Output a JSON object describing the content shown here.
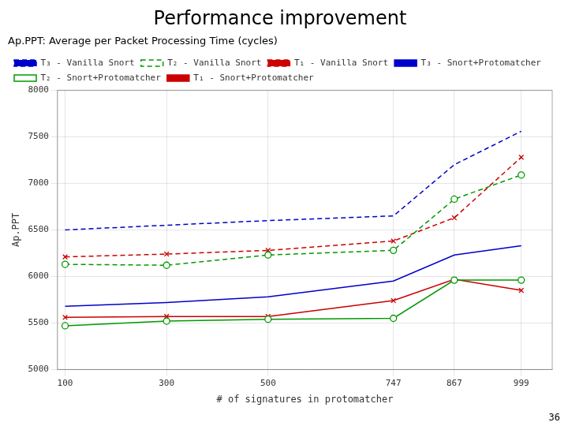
{
  "chart_data": {
    "type": "line",
    "title": "Performance improvement",
    "subtitle": "Ap.PPT: Average per Packet Processing Time (cycles)",
    "xlabel": "# of signatures in protomatcher",
    "ylabel": "Ap.PPT",
    "x": [
      100,
      300,
      500,
      747,
      867,
      999
    ],
    "xlim": [
      85,
      1060
    ],
    "xticks": [
      100,
      300,
      500,
      747,
      867,
      999
    ],
    "ylim": [
      5000,
      8000
    ],
    "yticks": [
      5000,
      5500,
      6000,
      6500,
      7000,
      7500,
      8000
    ],
    "grid": true,
    "legend": "upper left",
    "annotations": [
      "36"
    ],
    "series": [
      {
        "name": "T₃ - Vanilla Snort",
        "color": "#0000cc",
        "line_style": "dashed",
        "marker": "none",
        "values": [
          6500,
          6550,
          6600,
          6650,
          7200,
          7560
        ]
      },
      {
        "name": "T₂ - Vanilla Snort",
        "color": "#009900",
        "line_style": "dashed",
        "marker": "circle",
        "values": [
          6130,
          6120,
          6230,
          6280,
          6830,
          7090
        ]
      },
      {
        "name": "T₁ - Vanilla Snort",
        "color": "#cc0000",
        "line_style": "dashed",
        "marker": "cross",
        "values": [
          6210,
          6240,
          6280,
          6380,
          6630,
          7280
        ]
      },
      {
        "name": "T₃ - Snort+Protomatcher",
        "color": "#0000cc",
        "line_style": "solid",
        "marker": "none",
        "values": [
          5680,
          5720,
          5780,
          5950,
          6230,
          6330
        ]
      },
      {
        "name": "T₂ - Snort+Protomatcher",
        "color": "#009900",
        "line_style": "solid",
        "marker": "circle",
        "values": [
          5470,
          5520,
          5540,
          5550,
          5960,
          5960
        ]
      },
      {
        "name": "T₁ - Snort+Protomatcher",
        "color": "#cc0000",
        "line_style": "solid",
        "marker": "cross",
        "values": [
          5560,
          5570,
          5570,
          5740,
          5970,
          5850
        ]
      }
    ]
  }
}
